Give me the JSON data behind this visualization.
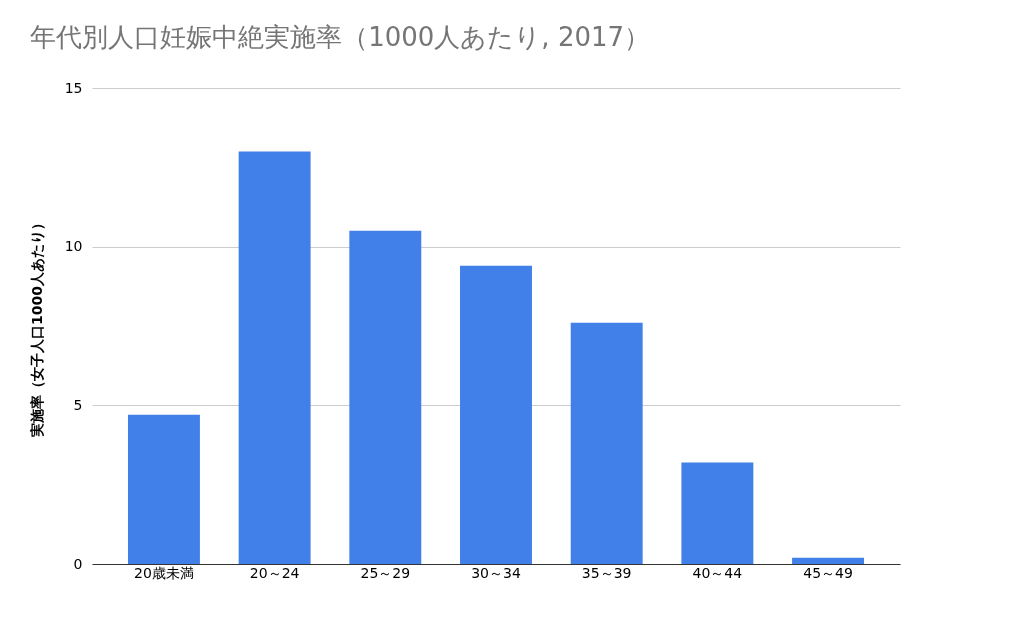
{
  "chart_data": {
    "type": "bar",
    "title": "年代別人口妊娠中絶実施率（1000人あたり, 2017）",
    "ylabel": "実施率（女子人口1000人あたり）",
    "categories": [
      "20歳未満",
      "20～24",
      "25～29",
      "30～34",
      "35～39",
      "40～44",
      "45～49"
    ],
    "values": [
      4.7,
      13.0,
      10.5,
      9.4,
      7.6,
      3.2,
      0.2
    ],
    "color": "#4080e8",
    "ylim": [
      0,
      15
    ],
    "yticks": [
      0,
      5,
      10,
      15
    ],
    "grid": "y"
  }
}
